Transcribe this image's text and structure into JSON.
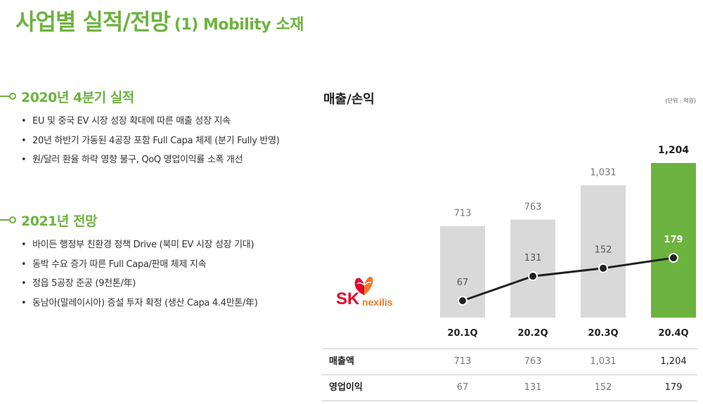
{
  "header": {
    "title": "사업별 실적/전망",
    "subtitle": "(1) Mobility 소재"
  },
  "sections": [
    {
      "title": "2020년 4분기 실적",
      "bullets": [
        "EU 및 중국 EV 시장 성장 확대에 따른 매출 성장 지속",
        "20년 하반기 가동된 4공장 포함 Full Capa 체제 (분기 Fully 반영)",
        "원/달러 환율 하락 영향 불구, QoQ 영업이익률 소폭 개선"
      ]
    },
    {
      "title": "2021년 전망",
      "bullets": [
        "바이든 행정부 친환경 정책 Drive (북미 EV 시장 성장 기대)",
        "동박 수요 증가 따른 Full Capa/판매 체제 지속",
        "정읍 5공장 준공 (9천톤/年)",
        "동남아(말레이시아) 증설 투자 확정 (생산 Capa 4.4만톤/年)"
      ]
    }
  ],
  "logo": {
    "brand": "SK",
    "name": "nexilis"
  },
  "chart_data": {
    "type": "bar",
    "title": "매출/손익",
    "unit": "(단위 : 억원)",
    "categories": [
      "20.1Q",
      "20.2Q",
      "20.3Q",
      "20.4Q"
    ],
    "series": [
      {
        "name": "매출액",
        "type": "bar",
        "values": [
          713,
          763,
          1031,
          1204
        ],
        "value_labels": [
          "713",
          "763",
          "1,031",
          "1,204"
        ]
      },
      {
        "name": "영업이익",
        "type": "line",
        "values": [
          67,
          131,
          152,
          179
        ],
        "value_labels": [
          "67",
          "131",
          "152",
          "179"
        ]
      }
    ],
    "colors": {
      "bar": "#d9d9d9",
      "bar_highlight": "#6db33f",
      "line": "#222222"
    },
    "highlight_index": 3
  },
  "table": {
    "rows": [
      {
        "label": "매출액",
        "values": [
          "713",
          "763",
          "1,031",
          "1,204"
        ]
      },
      {
        "label": "영업이익",
        "values": [
          "67",
          "131",
          "152",
          "179"
        ]
      }
    ]
  }
}
